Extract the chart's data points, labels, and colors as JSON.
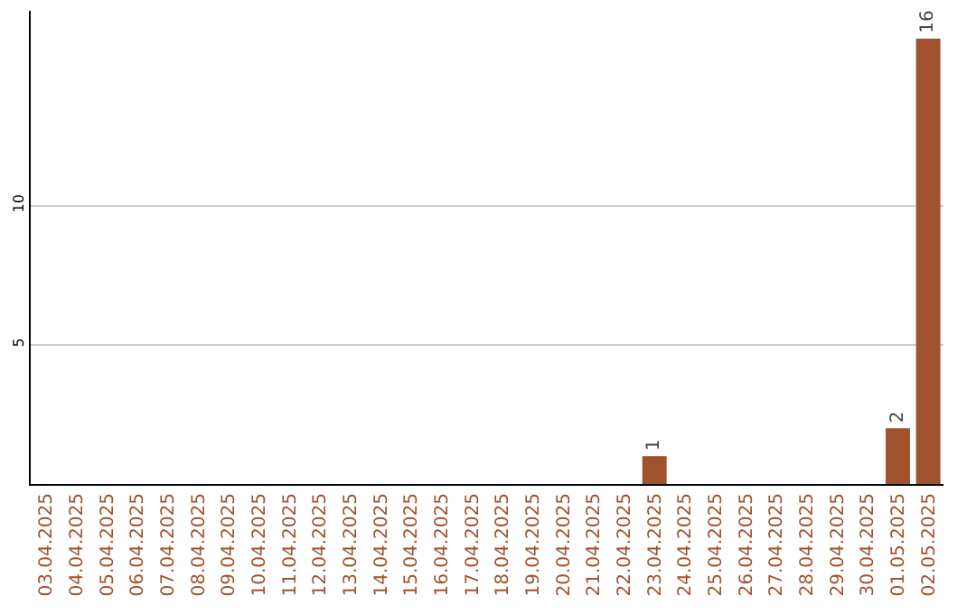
{
  "chart_data": {
    "type": "bar",
    "categories": [
      "03.04.2025",
      "04.04.2025",
      "05.04.2025",
      "06.04.2025",
      "07.04.2025",
      "08.04.2025",
      "09.04.2025",
      "10.04.2025",
      "11.04.2025",
      "12.04.2025",
      "13.04.2025",
      "14.04.2025",
      "15.04.2025",
      "16.04.2025",
      "17.04.2025",
      "18.04.2025",
      "19.04.2025",
      "20.04.2025",
      "21.04.2025",
      "22.04.2025",
      "23.04.2025",
      "24.04.2025",
      "25.04.2025",
      "26.04.2025",
      "27.04.2025",
      "28.04.2025",
      "29.04.2025",
      "30.04.2025",
      "01.05.2025",
      "02.05.2025"
    ],
    "values": [
      0,
      0,
      0,
      0,
      0,
      0,
      0,
      0,
      0,
      0,
      0,
      0,
      0,
      0,
      0,
      0,
      0,
      0,
      0,
      0,
      1,
      0,
      0,
      0,
      0,
      0,
      0,
      0,
      2,
      16
    ],
    "value_labels": [
      null,
      null,
      null,
      null,
      null,
      null,
      null,
      null,
      null,
      null,
      null,
      null,
      null,
      null,
      null,
      null,
      null,
      null,
      null,
      null,
      "1",
      null,
      null,
      null,
      null,
      null,
      null,
      null,
      "2",
      "16"
    ],
    "color": "#a0522d",
    "ylim": [
      0,
      17
    ],
    "yticks": [
      5,
      10
    ],
    "grid": "y",
    "legend": false
  }
}
